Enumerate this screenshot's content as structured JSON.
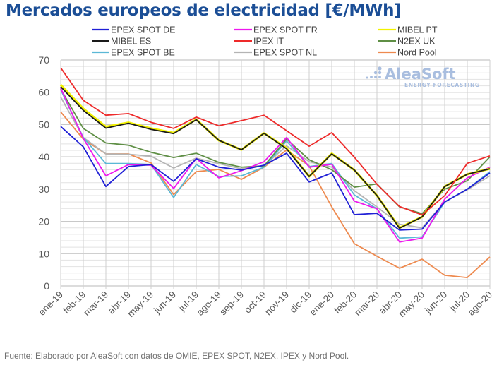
{
  "title": "Mercados europeos de electricidad [€/MWh]",
  "footer": "Fuente: Elaborado por AleaSoft con datos de OMIE, EPEX SPOT, N2EX, IPEX y Nord Pool.",
  "watermark": {
    "brand": "AleaSoft",
    "tagline": "ENERGY FORECASTING"
  },
  "chart_data": {
    "type": "line",
    "title": "Mercados europeos de electricidad [€/MWh]",
    "xlabel": "",
    "ylabel": "",
    "ylim": [
      0,
      70
    ],
    "yticks": [
      0,
      10,
      20,
      30,
      40,
      50,
      60,
      70
    ],
    "ytick_labels": [
      "0",
      "10",
      "20",
      "30",
      "40",
      "50",
      "60",
      "70"
    ],
    "grid": true,
    "legend_position": "top",
    "categories": [
      "ene-19",
      "feb-19",
      "mar-19",
      "abr-19",
      "may-19",
      "jun-19",
      "jul-19",
      "ago-19",
      "sep-19",
      "oct-19",
      "nov-19",
      "dic-19",
      "ene-20",
      "feb-20",
      "mar-20",
      "abr-20",
      "may-20",
      "jun-20",
      "jul-20",
      "ago-20"
    ],
    "series": [
      {
        "name": "EPEX SPOT DE",
        "color": "#1f1fd6",
        "values": [
          49.4,
          43.1,
          30.8,
          37.0,
          37.6,
          32.4,
          39.4,
          36.8,
          35.9,
          37.4,
          41.1,
          32.2,
          35.0,
          22.1,
          22.5,
          17.3,
          17.6,
          26.0,
          30.0,
          35.0
        ]
      },
      {
        "name": "EPEX SPOT FR",
        "color": "#ee18ee",
        "values": [
          61.3,
          45.7,
          34.1,
          37.6,
          37.4,
          30.2,
          39.5,
          33.5,
          35.7,
          38.5,
          46.0,
          36.8,
          37.7,
          26.3,
          23.9,
          13.6,
          14.8,
          26.9,
          33.5,
          36.8
        ]
      },
      {
        "name": "MIBEL PT",
        "color": "#f2f200",
        "values": [
          62.3,
          54.9,
          49.3,
          50.6,
          48.8,
          47.4,
          51.6,
          45.1,
          42.2,
          47.3,
          42.7,
          33.9,
          41.0,
          35.9,
          28.0,
          18.0,
          21.4,
          30.8,
          34.6,
          36.3
        ]
      },
      {
        "name": "MIBEL ES",
        "color": "#1a1a1a",
        "values": [
          61.7,
          54.4,
          48.9,
          50.4,
          48.5,
          47.2,
          51.5,
          45.1,
          42.2,
          47.3,
          42.5,
          33.9,
          40.9,
          35.9,
          28.0,
          17.9,
          21.4,
          30.8,
          34.6,
          36.3
        ]
      },
      {
        "name": "IPEX IT",
        "color": "#ee2a2a",
        "values": [
          67.6,
          57.5,
          52.9,
          53.4,
          50.7,
          48.8,
          52.3,
          49.6,
          51.2,
          52.9,
          48.1,
          43.3,
          47.5,
          39.9,
          31.5,
          24.6,
          22.0,
          28.0,
          38.0,
          40.3
        ]
      },
      {
        "name": "N2EX UK",
        "color": "#5f8f45",
        "values": [
          61.0,
          48.8,
          44.3,
          43.6,
          41.4,
          39.8,
          41.1,
          38.3,
          36.8,
          37.2,
          45.5,
          39.1,
          36.0,
          30.6,
          31.6,
          24.5,
          22.4,
          30.0,
          32.6,
          40.0
        ]
      },
      {
        "name": "EPEX SPOT BE",
        "color": "#5bb8d6",
        "values": [
          60.8,
          46.0,
          37.9,
          37.9,
          37.6,
          27.4,
          37.6,
          33.9,
          34.1,
          36.8,
          44.9,
          37.0,
          37.9,
          28.2,
          23.9,
          14.8,
          15.2,
          26.0,
          30.0,
          35.4
        ]
      },
      {
        "name": "EPEX SPOT NL",
        "color": "#b4b4b4",
        "values": [
          58.5,
          46.0,
          40.9,
          40.8,
          40.2,
          36.5,
          39.6,
          37.9,
          36.3,
          37.2,
          43.4,
          38.5,
          36.8,
          29.5,
          24.5,
          19.1,
          18.0,
          26.1,
          29.8,
          34.1
        ]
      },
      {
        "name": "Nord Pool",
        "color": "#ee8a4f",
        "values": [
          53.9,
          45.5,
          40.9,
          40.9,
          38.1,
          28.3,
          35.4,
          36.1,
          33.0,
          36.8,
          42.1,
          37.2,
          24.5,
          13.1,
          9.2,
          5.5,
          8.3,
          3.3,
          2.6,
          9.0
        ]
      }
    ]
  }
}
